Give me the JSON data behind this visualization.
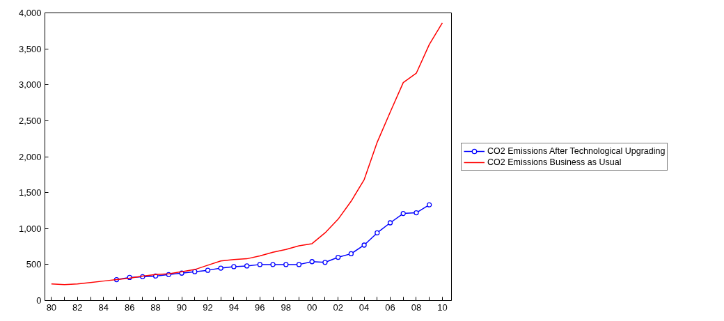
{
  "chart_data": {
    "type": "line",
    "x": [
      1980,
      1981,
      1982,
      1983,
      1984,
      1985,
      1986,
      1987,
      1988,
      1989,
      1990,
      1991,
      1992,
      1993,
      1994,
      1995,
      1996,
      1997,
      1998,
      1999,
      2000,
      2001,
      2002,
      2003,
      2004,
      2005,
      2006,
      2007,
      2008,
      2009,
      2010
    ],
    "series": [
      {
        "name": "CO2 Emissions After Technological Upgrading",
        "color": "#0000ff",
        "marker": "circle",
        "x": [
          1985,
          1986,
          1987,
          1988,
          1989,
          1990,
          1991,
          1992,
          1993,
          1994,
          1995,
          1996,
          1997,
          1998,
          1999,
          2000,
          2001,
          2002,
          2003,
          2004,
          2005,
          2006,
          2007,
          2008,
          2009
        ],
        "values": [
          290,
          320,
          330,
          340,
          360,
          380,
          400,
          420,
          450,
          470,
          480,
          500,
          500,
          500,
          500,
          540,
          530,
          600,
          650,
          770,
          940,
          1080,
          1210,
          1220,
          1330
        ]
      },
      {
        "name": "CO2 Emissions Business as Usual",
        "color": "#ff0000",
        "marker": "none",
        "values": [
          230,
          220,
          230,
          250,
          270,
          290,
          310,
          340,
          360,
          370,
          400,
          430,
          490,
          550,
          570,
          580,
          620,
          670,
          710,
          760,
          790,
          940,
          1130,
          1380,
          1680,
          2200,
          2620,
          3030,
          3160,
          3560,
          3860
        ]
      }
    ],
    "xlim": [
      1979.5,
      2010.7
    ],
    "ylim": [
      0,
      4000
    ],
    "xticks": [
      {
        "value": 1980,
        "label": "80"
      },
      {
        "value": 1981,
        "label": null
      },
      {
        "value": 1982,
        "label": "82"
      },
      {
        "value": 1983,
        "label": null
      },
      {
        "value": 1984,
        "label": "84"
      },
      {
        "value": 1985,
        "label": null
      },
      {
        "value": 1986,
        "label": "86"
      },
      {
        "value": 1987,
        "label": null
      },
      {
        "value": 1988,
        "label": "88"
      },
      {
        "value": 1989,
        "label": null
      },
      {
        "value": 1990,
        "label": "90"
      },
      {
        "value": 1991,
        "label": null
      },
      {
        "value": 1992,
        "label": "92"
      },
      {
        "value": 1993,
        "label": null
      },
      {
        "value": 1994,
        "label": "94"
      },
      {
        "value": 1995,
        "label": null
      },
      {
        "value": 1996,
        "label": "96"
      },
      {
        "value": 1997,
        "label": null
      },
      {
        "value": 1998,
        "label": "98"
      },
      {
        "value": 1999,
        "label": null
      },
      {
        "value": 2000,
        "label": "00"
      },
      {
        "value": 2001,
        "label": null
      },
      {
        "value": 2002,
        "label": "02"
      },
      {
        "value": 2003,
        "label": null
      },
      {
        "value": 2004,
        "label": "04"
      },
      {
        "value": 2005,
        "label": null
      },
      {
        "value": 2006,
        "label": "06"
      },
      {
        "value": 2007,
        "label": null
      },
      {
        "value": 2008,
        "label": "08"
      },
      {
        "value": 2009,
        "label": null
      },
      {
        "value": 2010,
        "label": "10"
      }
    ],
    "yticks": [
      0,
      500,
      {
        "value": 1000,
        "label": "1,000"
      },
      {
        "value": 1500,
        "label": "1,500"
      },
      {
        "value": 2000,
        "label": "2,000"
      },
      {
        "value": 2500,
        "label": "2,500"
      },
      {
        "value": 3000,
        "label": "3,000"
      },
      {
        "value": 3500,
        "label": "3,500"
      },
      {
        "value": 4000,
        "label": "4,000"
      }
    ],
    "grid": false,
    "legend": "right",
    "line_style": "solid"
  }
}
